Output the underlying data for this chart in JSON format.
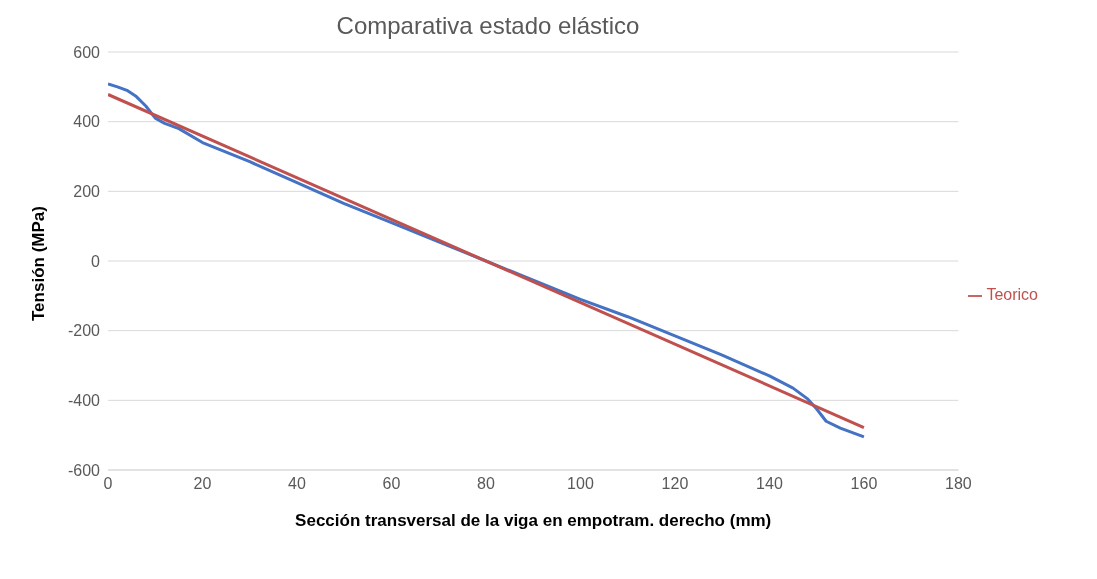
{
  "chart_data": {
    "type": "line",
    "title": "Comparativa estado elástico",
    "xlabel": "Sección transversal de la viga en empotram. derecho (mm)",
    "ylabel": "Tensión (MPa)",
    "series": [
      {
        "color": "#4472c4",
        "x": [
          0,
          2,
          4,
          6,
          8,
          10,
          12,
          15,
          20,
          30,
          40,
          50,
          60,
          70,
          80,
          90,
          100,
          110,
          120,
          130,
          140,
          145,
          148,
          150,
          152,
          155,
          158,
          160
        ],
        "values": [
          508,
          500,
          490,
          472,
          445,
          410,
          395,
          380,
          340,
          285,
          225,
          165,
          110,
          55,
          0,
          -55,
          -110,
          -160,
          -215,
          -270,
          -330,
          -365,
          -395,
          -425,
          -460,
          -480,
          -495,
          -505
        ]
      },
      {
        "name": "Teorico",
        "color": "#c0504d",
        "x": [
          0,
          160
        ],
        "values": [
          478,
          -478
        ]
      }
    ],
    "xlim": [
      0,
      180
    ],
    "xticks": [
      0,
      20,
      40,
      60,
      80,
      100,
      120,
      140,
      160,
      180
    ],
    "ylim": [
      -600,
      600
    ],
    "yticks": [
      -600,
      -400,
      -200,
      0,
      200,
      400,
      600
    ],
    "grid": "y",
    "legend": "right",
    "marker": "none",
    "line_style": "solid"
  }
}
